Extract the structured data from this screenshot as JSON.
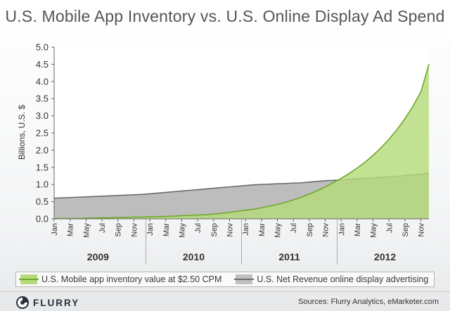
{
  "chart_data": {
    "type": "area",
    "title": "U.S. Mobile App Inventory vs. U.S. Online Display Ad Spend",
    "ylabel": "Billions, U.S. $",
    "ylim": [
      0,
      5.0
    ],
    "yticks": [
      "0.0",
      "0.5",
      "1.0",
      "1.5",
      "2.0",
      "2.5",
      "3.0",
      "3.5",
      "4.0",
      "4.5",
      "5.0"
    ],
    "x": [
      "2009-01",
      "2009-02",
      "2009-03",
      "2009-04",
      "2009-05",
      "2009-06",
      "2009-07",
      "2009-08",
      "2009-09",
      "2009-10",
      "2009-11",
      "2009-12",
      "2010-01",
      "2010-02",
      "2010-03",
      "2010-04",
      "2010-05",
      "2010-06",
      "2010-07",
      "2010-08",
      "2010-09",
      "2010-10",
      "2010-11",
      "2010-12",
      "2011-01",
      "2011-02",
      "2011-03",
      "2011-04",
      "2011-05",
      "2011-06",
      "2011-07",
      "2011-08",
      "2011-09",
      "2011-10",
      "2011-11",
      "2011-12",
      "2012-01",
      "2012-02",
      "2012-03",
      "2012-04",
      "2012-05",
      "2012-06",
      "2012-07",
      "2012-08",
      "2012-09",
      "2012-10",
      "2012-11",
      "2012-12"
    ],
    "x_tick_labels": [
      "Jan",
      "Mar",
      "May",
      "Jul",
      "Sep",
      "Nov",
      "Jan",
      "Mar",
      "May",
      "Jul",
      "Sep",
      "Nov",
      "Jan",
      "Mar",
      "May",
      "Jul",
      "Sep",
      "Nov",
      "Jan",
      "Mar",
      "May",
      "Jul",
      "Sep",
      "Nov"
    ],
    "years": [
      "2009",
      "2010",
      "2011",
      "2012"
    ],
    "series": [
      {
        "name": "U.S. Mobile app inventory value at $2.50 CPM",
        "color": "#6fa82d",
        "fill": "#b5db7a",
        "values": [
          0.01,
          0.01,
          0.01,
          0.01,
          0.02,
          0.02,
          0.03,
          0.03,
          0.04,
          0.04,
          0.05,
          0.05,
          0.06,
          0.06,
          0.07,
          0.08,
          0.09,
          0.1,
          0.11,
          0.12,
          0.14,
          0.16,
          0.19,
          0.22,
          0.25,
          0.28,
          0.32,
          0.37,
          0.42,
          0.48,
          0.55,
          0.63,
          0.72,
          0.82,
          0.93,
          1.05,
          1.18,
          1.32,
          1.48,
          1.65,
          1.85,
          2.07,
          2.32,
          2.6,
          2.92,
          3.28,
          3.7,
          4.5
        ]
      },
      {
        "name": "U.S. Net Revenue online display advertising",
        "color": "#6b6b6b",
        "fill": "#bdbdbd",
        "values": [
          0.6,
          0.61,
          0.62,
          0.63,
          0.64,
          0.65,
          0.66,
          0.67,
          0.68,
          0.69,
          0.7,
          0.71,
          0.73,
          0.75,
          0.77,
          0.79,
          0.81,
          0.83,
          0.85,
          0.87,
          0.89,
          0.91,
          0.93,
          0.95,
          0.97,
          0.99,
          1.0,
          1.01,
          1.02,
          1.03,
          1.04,
          1.05,
          1.07,
          1.09,
          1.11,
          1.12,
          1.13,
          1.15,
          1.17,
          1.18,
          1.19,
          1.21,
          1.22,
          1.24,
          1.26,
          1.28,
          1.3,
          1.33
        ]
      }
    ],
    "grid": false,
    "legend_position": "bottom"
  },
  "footer": {
    "logo_text": "FLURRY",
    "sources": "Sources: Flurry Analytics, eMarketer.com"
  }
}
